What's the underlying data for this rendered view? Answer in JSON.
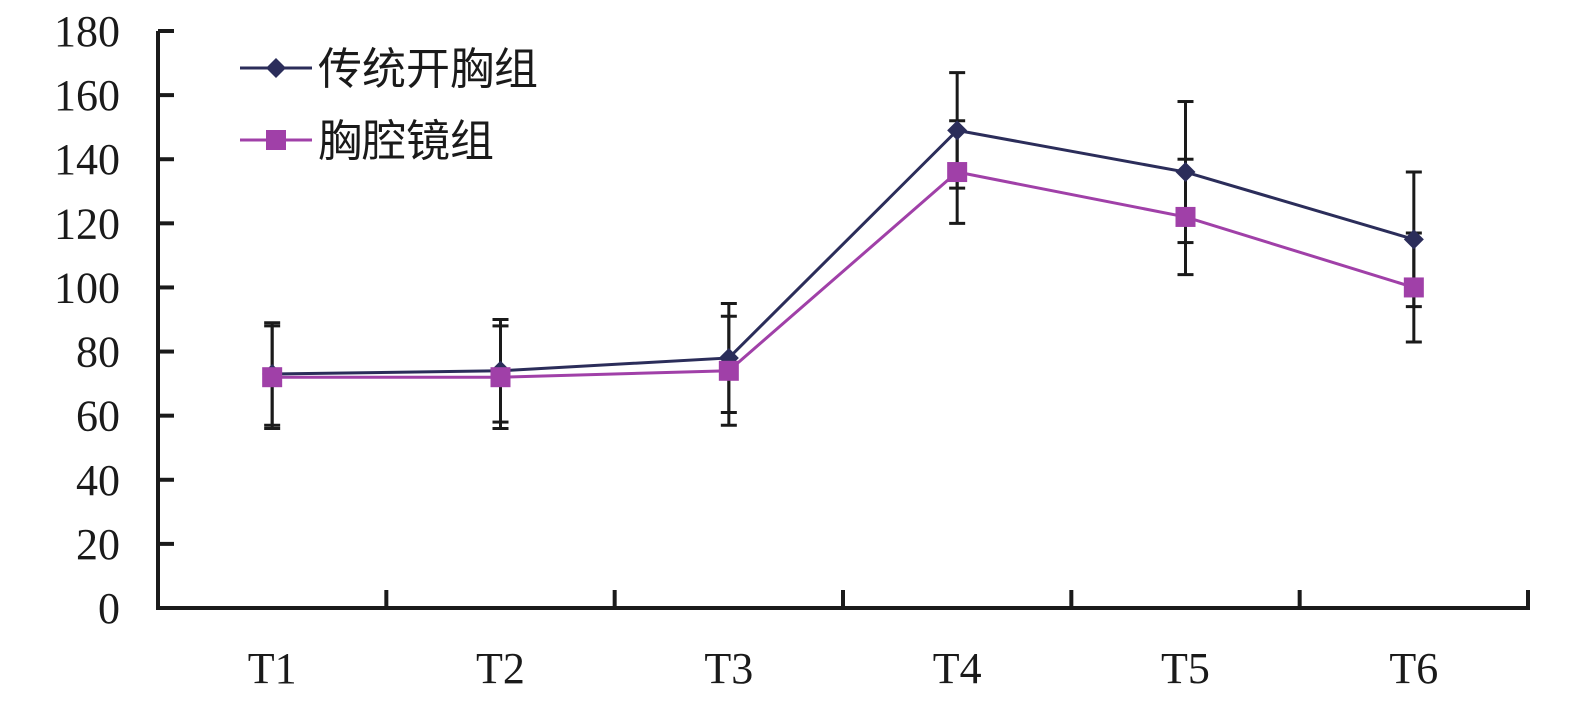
{
  "chart_data": {
    "type": "line",
    "title": "",
    "xlabel": "",
    "ylabel": "",
    "categories": [
      "T1",
      "T2",
      "T3",
      "T4",
      "T5",
      "T6"
    ],
    "ylim": [
      0,
      180
    ],
    "yticks": [
      0,
      20,
      40,
      60,
      80,
      100,
      120,
      140,
      160,
      180
    ],
    "ytick_labels": [
      "0",
      "20",
      "40",
      "60",
      "80",
      "100",
      "120",
      "140",
      "160",
      "180"
    ],
    "grid": false,
    "legend_position": "top-left",
    "series": [
      {
        "name": "传统开胸组",
        "color": "#2b2d5a",
        "marker": "diamond",
        "values": [
          73,
          74,
          78,
          149,
          136,
          115
        ],
        "error": [
          16,
          16,
          17,
          18,
          22,
          21
        ]
      },
      {
        "name": "胸腔镜组",
        "color": "#a040a8",
        "marker": "square",
        "values": [
          72,
          72,
          74,
          136,
          122,
          100
        ],
        "error": [
          16,
          16,
          17,
          16,
          18,
          17
        ]
      }
    ]
  }
}
